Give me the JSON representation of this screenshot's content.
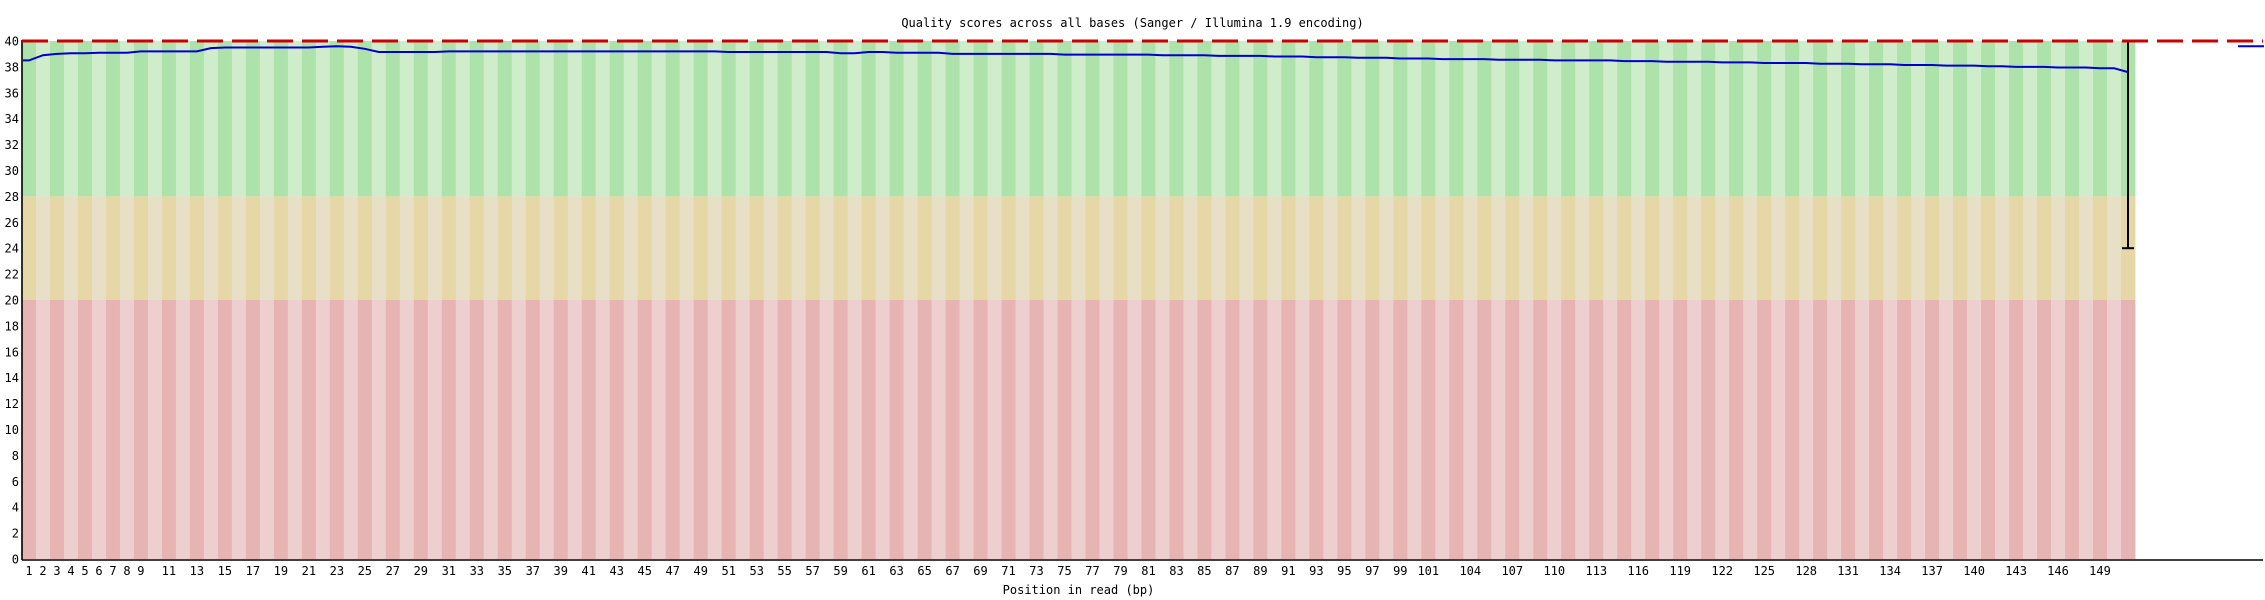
{
  "chart_data": {
    "type": "line",
    "title": "Quality scores across all bases (Sanger / Illumina 1.9 encoding)",
    "xlabel": "Position in read (bp)",
    "ylabel": "",
    "ylim": [
      0,
      40
    ],
    "n_positions": 151,
    "grid": false,
    "legend": "none",
    "y_ticks": [
      0,
      2,
      4,
      6,
      8,
      10,
      12,
      14,
      16,
      18,
      20,
      22,
      24,
      26,
      28,
      30,
      32,
      34,
      36,
      38,
      40
    ],
    "x_tick_labels": [
      1,
      2,
      3,
      4,
      5,
      6,
      7,
      8,
      9,
      11,
      13,
      15,
      17,
      19,
      21,
      23,
      25,
      27,
      29,
      31,
      33,
      35,
      37,
      39,
      41,
      43,
      45,
      47,
      49,
      51,
      53,
      55,
      57,
      59,
      61,
      63,
      65,
      67,
      69,
      71,
      73,
      75,
      77,
      79,
      81,
      83,
      85,
      87,
      89,
      91,
      93,
      95,
      97,
      99,
      101,
      104,
      107,
      110,
      113,
      116,
      119,
      122,
      125,
      128,
      131,
      134,
      137,
      140,
      143,
      146,
      149
    ],
    "zones": [
      {
        "name": "good-quality-zone",
        "from": 28,
        "to": 40,
        "dark": "#aee2ab",
        "light": "#cfeccb"
      },
      {
        "name": "ok-quality-zone",
        "from": 20,
        "to": 28,
        "dark": "#e5d7a6",
        "light": "#e7dfc6"
      },
      {
        "name": "poor-quality-zone",
        "from": 0,
        "to": 20,
        "dark": "#e7b4b4",
        "light": "#eecfcf"
      }
    ],
    "max_quality_line": {
      "value": 40,
      "color": "#cc0000",
      "style": "dashed"
    },
    "mean_color": "#0000cc",
    "axis_color": "#000000",
    "mean_series": [
      38.5,
      38.9,
      39.0,
      39.05,
      39.05,
      39.1,
      39.1,
      39.1,
      39.2,
      39.2,
      39.2,
      39.2,
      39.2,
      39.45,
      39.5,
      39.5,
      39.5,
      39.5,
      39.5,
      39.5,
      39.5,
      39.55,
      39.6,
      39.55,
      39.4,
      39.15,
      39.15,
      39.15,
      39.15,
      39.15,
      39.2,
      39.2,
      39.2,
      39.2,
      39.2,
      39.2,
      39.2,
      39.2,
      39.2,
      39.2,
      39.2,
      39.2,
      39.2,
      39.2,
      39.2,
      39.2,
      39.2,
      39.2,
      39.2,
      39.2,
      39.15,
      39.15,
      39.15,
      39.15,
      39.15,
      39.15,
      39.15,
      39.15,
      39.05,
      39.05,
      39.15,
      39.15,
      39.1,
      39.1,
      39.1,
      39.1,
      39.0,
      39.0,
      39.0,
      39.0,
      39.0,
      39.0,
      39.0,
      39.0,
      38.95,
      38.95,
      38.95,
      38.95,
      38.95,
      38.95,
      38.95,
      38.9,
      38.9,
      38.9,
      38.9,
      38.85,
      38.85,
      38.85,
      38.85,
      38.8,
      38.8,
      38.8,
      38.75,
      38.75,
      38.75,
      38.7,
      38.7,
      38.7,
      38.65,
      38.65,
      38.65,
      38.6,
      38.6,
      38.6,
      38.6,
      38.55,
      38.55,
      38.55,
      38.55,
      38.5,
      38.5,
      38.5,
      38.5,
      38.5,
      38.45,
      38.45,
      38.45,
      38.4,
      38.4,
      38.4,
      38.4,
      38.35,
      38.35,
      38.35,
      38.3,
      38.3,
      38.3,
      38.3,
      38.25,
      38.25,
      38.25,
      38.2,
      38.2,
      38.2,
      38.15,
      38.15,
      38.15,
      38.1,
      38.1,
      38.1,
      38.05,
      38.05,
      38.0,
      38.0,
      38.0,
      37.95,
      37.95,
      37.95,
      37.9,
      37.9,
      37.6
    ],
    "last_base_whisker": {
      "position": 151,
      "low": 24,
      "high": 40
    },
    "right_edge_stub_value": 39.6
  }
}
